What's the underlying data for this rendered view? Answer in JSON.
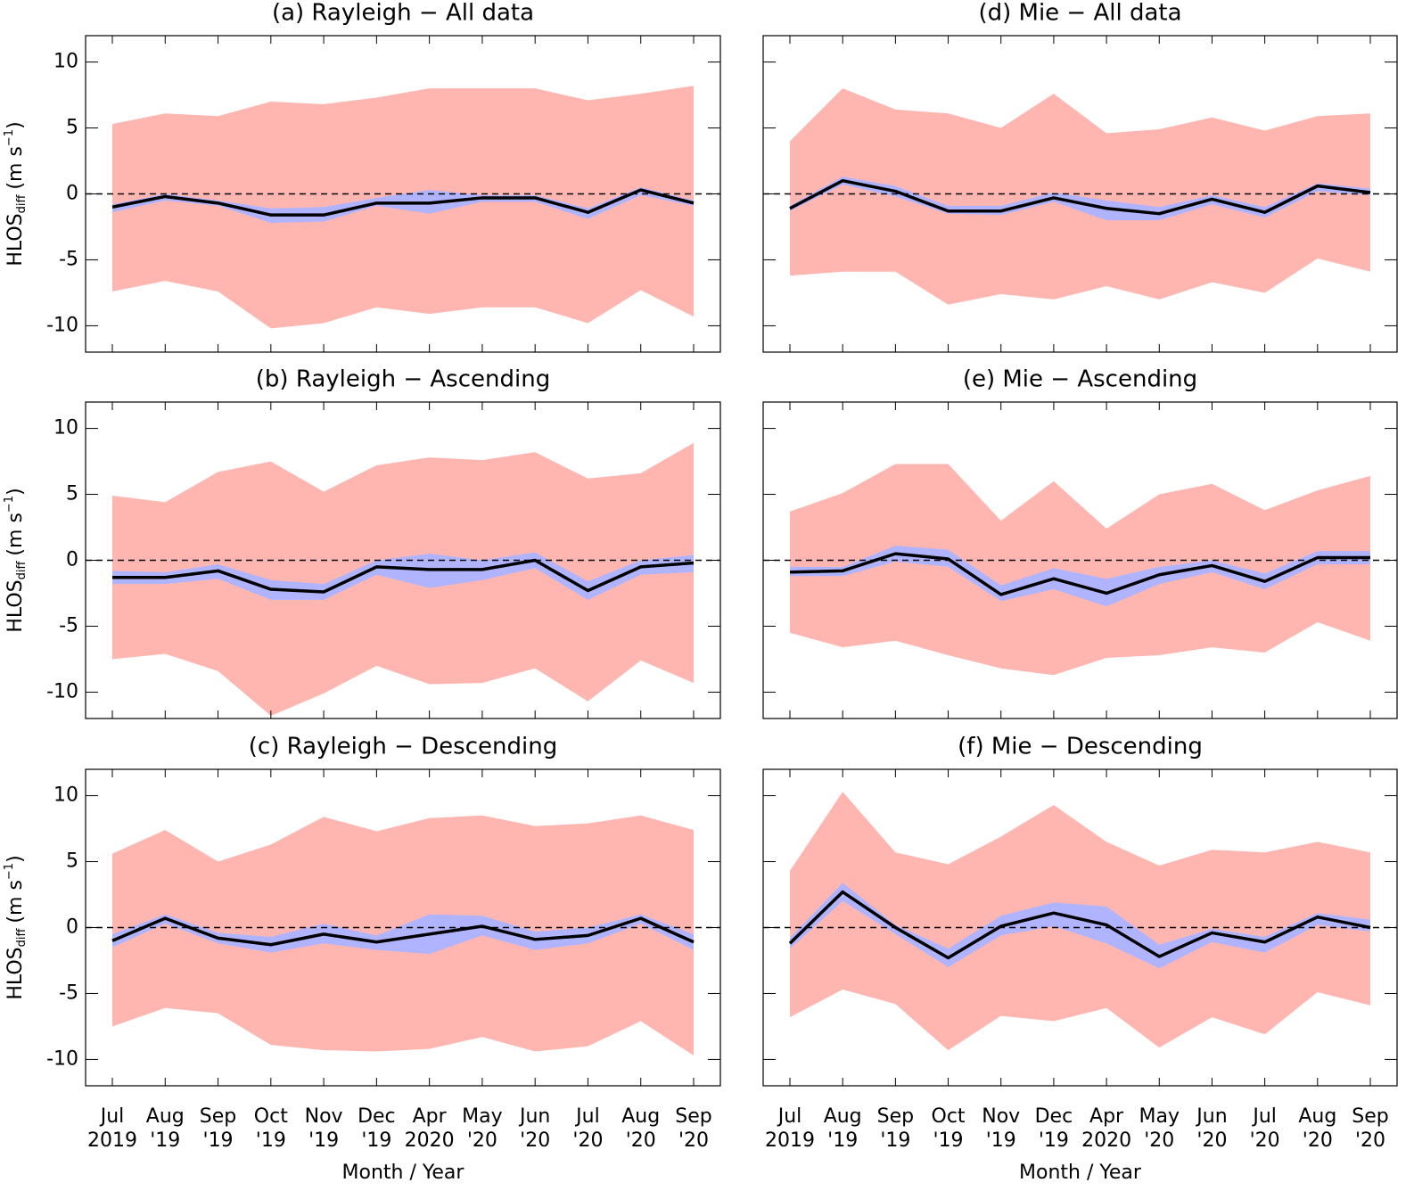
{
  "chart_data": [
    {
      "type": "band-line",
      "title": "(a) Rayleigh − All data",
      "ylabel": [
        "HLOS",
        "diff",
        "(m s",
        "−1",
        ")"
      ],
      "ylim": [
        -12,
        12
      ],
      "yticks": [
        -10,
        -5,
        0,
        5,
        10
      ],
      "reference_line": 0,
      "series": [
        {
          "color": "#ffb6b0",
          "upper": [
            5.3,
            6.1,
            5.9,
            7.0,
            6.8,
            7.3,
            8.0,
            8.0,
            8.0,
            7.1,
            7.6,
            8.2
          ],
          "lower": [
            -7.4,
            -6.6,
            -7.4,
            -10.2,
            -9.8,
            -8.6,
            -9.1,
            -8.6,
            -8.6,
            -9.8,
            -7.3,
            -9.3
          ]
        },
        {
          "color": "#b0b4ff",
          "upper": [
            -0.8,
            0.0,
            -0.5,
            -1.1,
            -1.0,
            -0.3,
            0.3,
            -0.1,
            -0.1,
            -1.1,
            0.5,
            -0.5
          ],
          "lower": [
            -1.4,
            -0.5,
            -0.9,
            -2.2,
            -2.1,
            -0.9,
            -1.5,
            -0.6,
            -0.6,
            -1.9,
            -0.1,
            -0.9
          ]
        },
        {
          "color": "#000000",
          "values": [
            -1.0,
            -0.2,
            -0.7,
            -1.6,
            -1.6,
            -0.7,
            -0.7,
            -0.3,
            -0.3,
            -1.4,
            0.3,
            -0.7
          ]
        }
      ]
    },
    {
      "type": "band-line",
      "title": "(b) Rayleigh − Ascending",
      "ylabel": [
        "HLOS",
        "diff",
        "(m s",
        "−1",
        ")"
      ],
      "ylim": [
        -12,
        12
      ],
      "yticks": [
        -10,
        -5,
        0,
        5,
        10
      ],
      "reference_line": 0,
      "series": [
        {
          "color": "#ffb6b0",
          "upper": [
            4.9,
            4.4,
            6.7,
            7.5,
            5.2,
            7.2,
            7.8,
            7.6,
            8.2,
            6.2,
            6.6,
            8.9
          ],
          "lower": [
            -7.5,
            -7.1,
            -8.4,
            -11.8,
            -10.1,
            -8.0,
            -9.4,
            -9.3,
            -8.2,
            -10.7,
            -7.6,
            -9.3
          ]
        },
        {
          "color": "#b0b4ff",
          "upper": [
            -0.8,
            -0.9,
            -0.3,
            -1.5,
            -1.8,
            0.0,
            0.5,
            0.0,
            0.6,
            -1.6,
            0.0,
            0.4
          ],
          "lower": [
            -1.8,
            -1.8,
            -1.4,
            -3.0,
            -3.0,
            -1.1,
            -2.1,
            -1.5,
            -0.6,
            -3.0,
            -1.1,
            -0.9
          ]
        },
        {
          "color": "#000000",
          "values": [
            -1.3,
            -1.3,
            -0.8,
            -2.2,
            -2.4,
            -0.5,
            -0.7,
            -0.7,
            0.0,
            -2.3,
            -0.5,
            -0.2
          ]
        }
      ]
    },
    {
      "type": "band-line",
      "title": "(c) Rayleigh − Descending",
      "ylabel": [
        "HLOS",
        "diff",
        "(m s",
        "−1",
        ")"
      ],
      "xlabel": "Month / Year",
      "categories": [
        [
          "Jul",
          "2019"
        ],
        [
          "Aug",
          "'19"
        ],
        [
          "Sep",
          "'19"
        ],
        [
          "Oct",
          "'19"
        ],
        [
          "Nov",
          "'19"
        ],
        [
          "Dec",
          "'19"
        ],
        [
          "Apr",
          "2020"
        ],
        [
          "May",
          "'20"
        ],
        [
          "Jun",
          "'20"
        ],
        [
          "Jul",
          "'20"
        ],
        [
          "Aug",
          "'20"
        ],
        [
          "Sep",
          "'20"
        ]
      ],
      "ylim": [
        -12,
        12
      ],
      "yticks": [
        -10,
        -5,
        0,
        5,
        10
      ],
      "reference_line": 0,
      "series": [
        {
          "color": "#ffb6b0",
          "upper": [
            5.6,
            7.4,
            5.0,
            6.3,
            8.4,
            7.3,
            8.3,
            8.5,
            7.7,
            7.9,
            8.5,
            7.4
          ],
          "lower": [
            -7.5,
            -6.1,
            -6.5,
            -8.9,
            -9.3,
            -9.4,
            -9.2,
            -8.3,
            -9.4,
            -9.0,
            -7.1,
            -9.7
          ]
        },
        {
          "color": "#b0b4ff",
          "upper": [
            -0.5,
            1.0,
            -0.4,
            -0.7,
            0.3,
            -0.6,
            1.0,
            0.9,
            -0.3,
            0.0,
            1.0,
            -0.5
          ],
          "lower": [
            -1.5,
            0.3,
            -1.2,
            -1.9,
            -1.2,
            -1.7,
            -2.0,
            -0.6,
            -1.7,
            -1.2,
            0.3,
            -1.7
          ]
        },
        {
          "color": "#000000",
          "values": [
            -1.0,
            0.7,
            -0.8,
            -1.3,
            -0.5,
            -1.1,
            -0.5,
            0.1,
            -0.9,
            -0.6,
            0.7,
            -1.1
          ]
        }
      ]
    },
    {
      "type": "band-line",
      "title": "(d) Mie − All data",
      "ylim": [
        -12,
        12
      ],
      "yticks": [
        -10,
        -5,
        0,
        5,
        10
      ],
      "reference_line": 0,
      "series": [
        {
          "color": "#ffb6b0",
          "upper": [
            4.0,
            8.0,
            6.4,
            6.1,
            5.0,
            7.6,
            4.6,
            4.9,
            5.8,
            4.8,
            5.9,
            6.1
          ],
          "lower": [
            -6.2,
            -5.9,
            -5.9,
            -8.4,
            -7.6,
            -8.0,
            -7.0,
            -8.0,
            -6.7,
            -7.5,
            -4.9,
            -5.9
          ]
        },
        {
          "color": "#b0b4ff",
          "upper": [
            -0.9,
            1.3,
            0.6,
            -0.9,
            -0.9,
            0.1,
            -0.5,
            -1.0,
            -0.1,
            -1.0,
            0.8,
            0.4
          ],
          "lower": [
            -1.3,
            0.7,
            -0.2,
            -1.5,
            -1.6,
            -0.6,
            -2.0,
            -2.0,
            -0.8,
            -1.8,
            0.2,
            -0.1
          ]
        },
        {
          "color": "#000000",
          "values": [
            -1.1,
            1.0,
            0.2,
            -1.3,
            -1.3,
            -0.3,
            -1.1,
            -1.5,
            -0.4,
            -1.4,
            0.6,
            0.1
          ]
        }
      ]
    },
    {
      "type": "band-line",
      "title": "(e) Mie − Ascending",
      "ylim": [
        -12,
        12
      ],
      "yticks": [
        -10,
        -5,
        0,
        5,
        10
      ],
      "reference_line": 0,
      "series": [
        {
          "color": "#ffb6b0",
          "upper": [
            3.7,
            5.1,
            7.3,
            7.3,
            3.0,
            6.0,
            2.4,
            5.0,
            5.8,
            3.8,
            5.3,
            6.4
          ],
          "lower": [
            -5.5,
            -6.6,
            -6.1,
            -7.2,
            -8.2,
            -8.7,
            -7.4,
            -7.2,
            -6.6,
            -7.0,
            -4.7,
            -6.1
          ]
        },
        {
          "color": "#b0b4ff",
          "upper": [
            -0.5,
            -0.5,
            1.1,
            0.8,
            -1.9,
            -0.6,
            -1.4,
            -0.5,
            0.0,
            -1.0,
            0.7,
            0.7
          ],
          "lower": [
            -1.2,
            -1.2,
            -0.1,
            -0.5,
            -3.1,
            -2.2,
            -3.5,
            -1.8,
            -0.9,
            -2.2,
            -0.3,
            -0.3
          ]
        },
        {
          "color": "#000000",
          "values": [
            -0.9,
            -0.8,
            0.5,
            0.1,
            -2.6,
            -1.4,
            -2.5,
            -1.1,
            -0.4,
            -1.6,
            0.2,
            0.2
          ]
        }
      ]
    },
    {
      "type": "band-line",
      "title": "(f) Mie − Descending",
      "xlabel": "Month / Year",
      "categories": [
        [
          "Jul",
          "2019"
        ],
        [
          "Aug",
          "'19"
        ],
        [
          "Sep",
          "'19"
        ],
        [
          "Oct",
          "'19"
        ],
        [
          "Nov",
          "'19"
        ],
        [
          "Dec",
          "'19"
        ],
        [
          "Apr",
          "2020"
        ],
        [
          "May",
          "'20"
        ],
        [
          "Jun",
          "'20"
        ],
        [
          "Jul",
          "'20"
        ],
        [
          "Aug",
          "'20"
        ],
        [
          "Sep",
          "'20"
        ]
      ],
      "ylim": [
        -12,
        12
      ],
      "yticks": [
        -10,
        -5,
        0,
        5,
        10
      ],
      "reference_line": 0,
      "series": [
        {
          "color": "#ffb6b0",
          "upper": [
            4.3,
            10.3,
            5.7,
            4.8,
            6.9,
            9.3,
            6.5,
            4.7,
            5.9,
            5.7,
            6.5,
            5.7
          ],
          "lower": [
            -6.8,
            -4.7,
            -5.8,
            -9.3,
            -6.7,
            -7.1,
            -6.1,
            -9.1,
            -6.8,
            -8.1,
            -4.9,
            -5.9
          ]
        },
        {
          "color": "#b0b4ff",
          "upper": [
            -0.8,
            3.4,
            0.2,
            -1.6,
            0.9,
            1.9,
            1.6,
            -1.3,
            -0.1,
            -0.7,
            1.1,
            0.6
          ],
          "lower": [
            -1.6,
            2.0,
            -0.5,
            -3.0,
            -0.6,
            0.1,
            -1.2,
            -3.1,
            -1.1,
            -1.9,
            0.2,
            -0.3
          ]
        },
        {
          "color": "#000000",
          "values": [
            -1.2,
            2.7,
            0.0,
            -2.3,
            0.1,
            1.1,
            0.2,
            -2.2,
            -0.4,
            -1.1,
            0.8,
            0.0
          ]
        }
      ]
    }
  ]
}
